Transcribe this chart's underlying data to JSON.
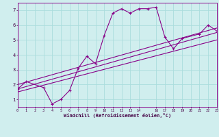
{
  "xlabel": "Windchill (Refroidissement éolien,°C)",
  "bg_color": "#d0eeee",
  "grid_color": "#aadddd",
  "line_color": "#880088",
  "xlim": [
    0,
    23
  ],
  "ylim": [
    0.5,
    7.5
  ],
  "xticks": [
    0,
    1,
    2,
    3,
    4,
    5,
    6,
    7,
    8,
    9,
    10,
    11,
    12,
    13,
    14,
    16,
    17,
    18,
    19,
    20,
    21,
    22,
    23
  ],
  "yticks": [
    1,
    2,
    3,
    4,
    5,
    6,
    7
  ],
  "curve1_x": [
    0,
    1,
    3,
    4,
    5,
    6,
    7,
    8,
    9,
    10,
    11,
    12,
    13,
    14,
    15,
    16,
    17,
    18,
    19,
    21,
    22,
    23
  ],
  "curve1_y": [
    1.7,
    2.2,
    1.8,
    0.7,
    1.0,
    1.6,
    3.1,
    3.9,
    3.4,
    5.3,
    6.8,
    7.1,
    6.8,
    7.1,
    7.1,
    7.2,
    5.2,
    4.4,
    5.1,
    5.4,
    6.0,
    5.6
  ],
  "line2_x": [
    0,
    23
  ],
  "line2_y": [
    1.7,
    5.5
  ],
  "line3_x": [
    0,
    23
  ],
  "line3_y": [
    1.5,
    5.0
  ],
  "line4_x": [
    0,
    23
  ],
  "line4_y": [
    2.0,
    5.8
  ]
}
